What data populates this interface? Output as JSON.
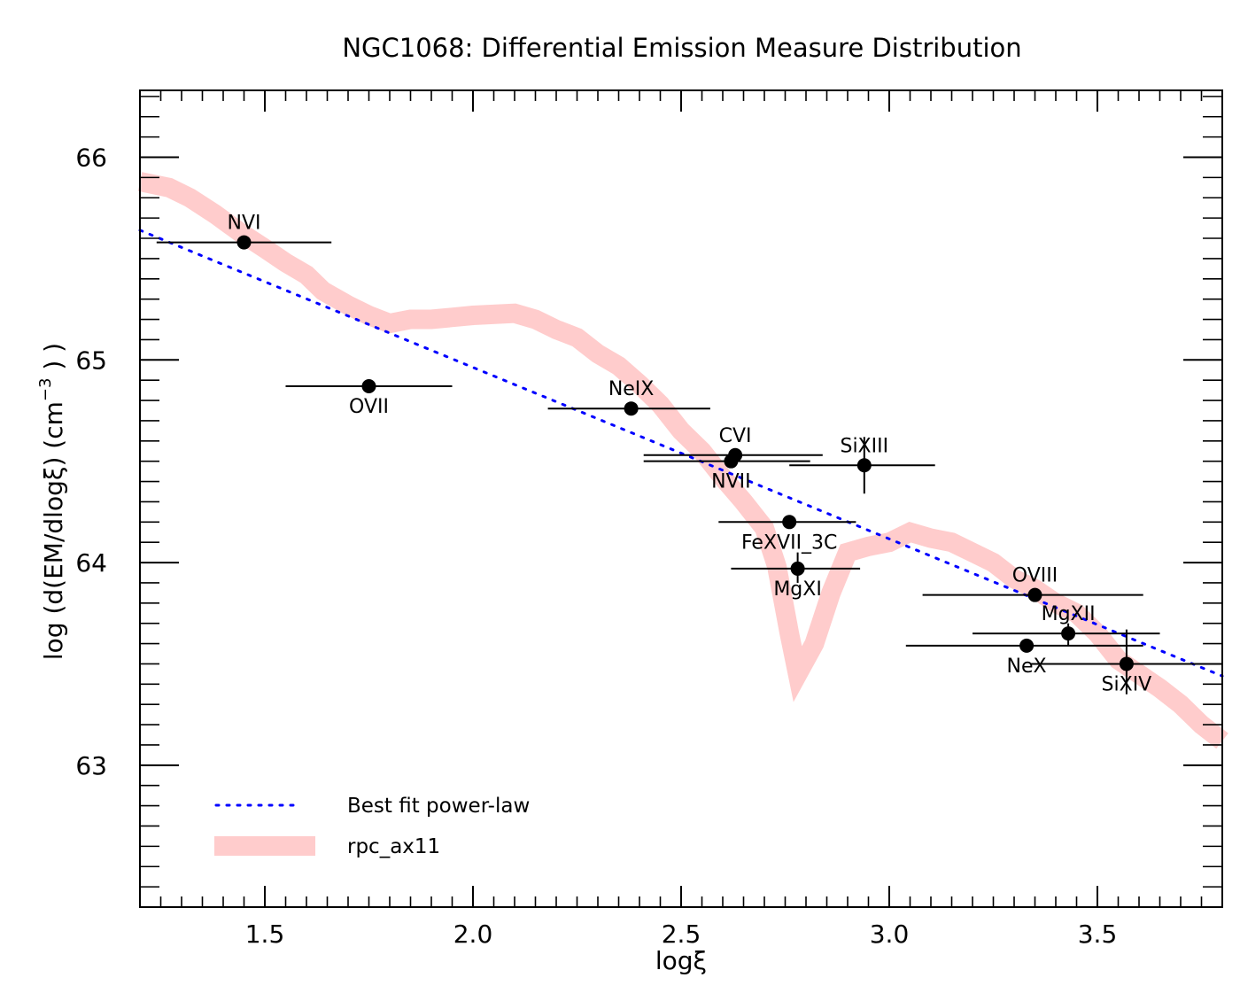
{
  "chart_data": {
    "type": "scatter",
    "title": "NGC1068: Differential Emission Measure Distribution",
    "xlabel": "logξ",
    "ylabel_parts": {
      "main": "log (d(EM/dlogξ) (cm",
      "sup": "−3",
      "tail": ") )"
    },
    "xlim": [
      1.2,
      3.8
    ],
    "ylim": [
      62.3,
      66.33
    ],
    "x_ticks": [
      "1.5",
      "2.0",
      "2.5",
      "3.0",
      "3.5"
    ],
    "x_tick_values": [
      1.5,
      2.0,
      2.5,
      3.0,
      3.5
    ],
    "y_ticks": [
      "63",
      "64",
      "65",
      "66"
    ],
    "y_tick_values": [
      63,
      64,
      65,
      66
    ],
    "legend_position": "lower-left",
    "points": [
      {
        "label": "NVI",
        "x": 1.45,
        "y": 65.58,
        "xerr": [
          1.24,
          1.66
        ],
        "yerr": null,
        "label_side": "above"
      },
      {
        "label": "OVII",
        "x": 1.75,
        "y": 64.87,
        "xerr": [
          1.55,
          1.95
        ],
        "yerr": null,
        "label_side": "below"
      },
      {
        "label": "NeIX",
        "x": 2.38,
        "y": 64.76,
        "xerr": [
          2.18,
          2.57
        ],
        "yerr": null,
        "label_side": "above"
      },
      {
        "label": "CVI",
        "x": 2.63,
        "y": 64.53,
        "xerr": [
          2.41,
          2.84
        ],
        "yerr": null,
        "label_side": "above"
      },
      {
        "label": "NVII",
        "x": 2.62,
        "y": 64.5,
        "xerr": [
          2.41,
          2.81
        ],
        "yerr": null,
        "label_side": "below"
      },
      {
        "label": "SiXIII",
        "x": 2.94,
        "y": 64.48,
        "xerr": [
          2.76,
          3.11
        ],
        "yerr": [
          64.34,
          64.62
        ],
        "label_side": "above"
      },
      {
        "label": "FeXVII_3C",
        "x": 2.76,
        "y": 64.2,
        "xerr": [
          2.59,
          2.92
        ],
        "yerr": null,
        "label_side": "below"
      },
      {
        "label": "MgXI",
        "x": 2.78,
        "y": 63.97,
        "xerr": [
          2.62,
          2.93
        ],
        "yerr": [
          63.9,
          64.05
        ],
        "label_side": "below"
      },
      {
        "label": "OVIII",
        "x": 3.35,
        "y": 63.84,
        "xerr": [
          3.08,
          3.61
        ],
        "yerr": null,
        "label_side": "above"
      },
      {
        "label": "MgXII",
        "x": 3.43,
        "y": 63.65,
        "xerr": [
          3.2,
          3.65
        ],
        "yerr": [
          63.59,
          63.7
        ],
        "label_side": "above"
      },
      {
        "label": "NeX",
        "x": 3.33,
        "y": 63.59,
        "xerr": [
          3.04,
          3.61
        ],
        "yerr": null,
        "label_side": "below"
      },
      {
        "label": "SiXIV",
        "x": 3.57,
        "y": 63.5,
        "xerr": [
          3.34,
          3.8
        ],
        "yerr": [
          63.35,
          63.67
        ],
        "label_side": "below"
      }
    ],
    "series": [
      {
        "name": "Best fit power-law",
        "style": "dotted",
        "color": "#0000ff",
        "x": [
          1.2,
          3.8
        ],
        "y": [
          65.64,
          63.44
        ]
      },
      {
        "name": "rpc_ax11",
        "style": "thick",
        "color": "#ffcccc",
        "x": [
          1.2,
          1.27,
          1.32,
          1.38,
          1.44,
          1.5,
          1.55,
          1.6,
          1.64,
          1.7,
          1.75,
          1.8,
          1.85,
          1.9,
          2.0,
          2.1,
          2.15,
          2.2,
          2.25,
          2.3,
          2.35,
          2.4,
          2.45,
          2.5,
          2.55,
          2.6,
          2.65,
          2.7,
          2.73,
          2.76,
          2.78,
          2.82,
          2.86,
          2.9,
          2.95,
          3.0,
          3.05,
          3.1,
          3.15,
          3.2,
          3.25,
          3.3,
          3.35,
          3.4,
          3.45,
          3.5,
          3.55,
          3.6,
          3.65,
          3.7,
          3.75,
          3.8
        ],
        "y": [
          65.88,
          65.85,
          65.8,
          65.72,
          65.63,
          65.55,
          65.48,
          65.42,
          65.34,
          65.27,
          65.22,
          65.18,
          65.2,
          65.2,
          65.22,
          65.23,
          65.2,
          65.15,
          65.11,
          65.03,
          64.97,
          64.88,
          64.78,
          64.65,
          64.55,
          64.42,
          64.3,
          64.17,
          63.98,
          63.65,
          63.45,
          63.6,
          63.85,
          64.05,
          64.08,
          64.1,
          64.15,
          64.12,
          64.1,
          64.05,
          64.0,
          63.92,
          63.87,
          63.8,
          63.75,
          63.65,
          63.52,
          63.45,
          63.38,
          63.3,
          63.2,
          63.12
        ]
      }
    ]
  }
}
